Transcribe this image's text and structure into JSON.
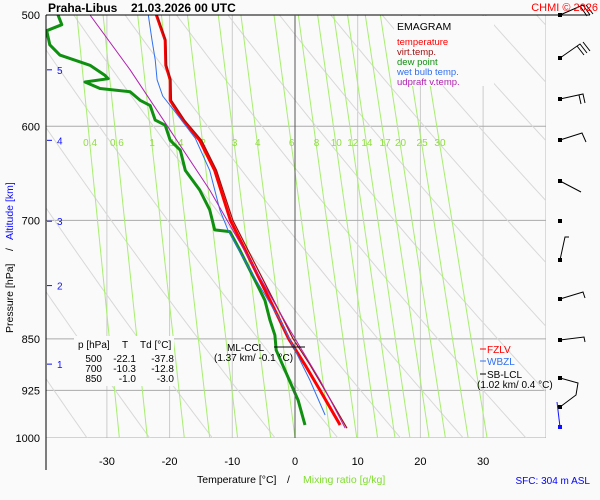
{
  "header": {
    "station": "Praha-Libus",
    "datetime": "21.03.2026 00 UTC",
    "copyright": "CHMI © 2026"
  },
  "chart_data": {
    "type": "line",
    "title": "EMAGRAM",
    "xlabel": "Temperature [°C]",
    "xlabel_sep": "/",
    "xlabel2": "Mixing ratio [g/kg]",
    "ylabel": "Pressure [hPa]",
    "ylabel_sep": "/",
    "ylabel2": "Altitude [km]",
    "xlim": [
      -38,
      42
    ],
    "ylim": [
      1000,
      500
    ],
    "x_ticks": [
      "-30",
      "-20",
      "-10",
      "0",
      "10",
      "20",
      "30"
    ],
    "y_ticks": [
      "500",
      "600",
      "700",
      "850",
      "925",
      "1000"
    ],
    "altitude_ticks": [
      {
        "km": "1",
        "p": 886
      },
      {
        "km": "2",
        "p": 779
      },
      {
        "km": "3",
        "p": 701
      },
      {
        "km": "4",
        "p": 614
      },
      {
        "km": "5",
        "p": 547
      }
    ],
    "mixing_ratio_labels": [
      "0.4",
      "0.6",
      "1",
      "1.4",
      "2",
      "3",
      "4",
      "6",
      "8",
      "10",
      "12",
      "14",
      "17",
      "20",
      "25",
      "30"
    ],
    "legend": [
      {
        "label": "temperature",
        "color": "#ff0000"
      },
      {
        "label": "virt.temp.",
        "color": "#a01010"
      },
      {
        "label": "dew point",
        "color": "#109010"
      },
      {
        "label": "wet bulb temp.",
        "color": "#3070f0"
      },
      {
        "label": "udpraft v.temp.",
        "color": "#b020b0"
      }
    ],
    "series": [
      {
        "name": "temperature",
        "color": "#ff0000",
        "p": [
          500,
          521,
          543,
          556,
          575,
          594,
          614,
          645,
          700,
          759,
          811,
          850,
          887,
          925,
          979
        ],
        "t": [
          -22.1,
          -20.7,
          -20.6,
          -19.9,
          -19.9,
          -17.9,
          -15.2,
          -12.8,
          -10.3,
          -6.4,
          -3.2,
          -1.0,
          1.6,
          4.0,
          7.2
        ]
      },
      {
        "name": "virt.temp.",
        "color": "#a01010",
        "p": [
          500,
          521,
          543,
          556,
          575,
          594,
          614,
          645,
          700,
          759,
          811,
          850,
          887,
          925,
          984
        ],
        "t": [
          -22.0,
          -20.6,
          -20.5,
          -19.8,
          -19.7,
          -17.6,
          -14.9,
          -12.5,
          -9.9,
          -5.9,
          -2.6,
          -0.3,
          2.4,
          4.8,
          8.3
        ]
      },
      {
        "name": "dew point",
        "color": "#109010",
        "p": [
          500,
          508,
          513,
          525,
          534,
          543,
          552,
          555,
          558,
          564,
          567,
          575,
          580,
          594,
          599,
          614,
          624,
          645,
          666,
          688,
          711,
          713,
          735,
          772,
          798,
          824,
          845,
          866,
          895,
          940,
          979
        ],
        "t": [
          -37.8,
          -37.2,
          -39.6,
          -39.1,
          -37.5,
          -32.7,
          -30.3,
          -29.8,
          -33.5,
          -31.1,
          -26.3,
          -24.7,
          -23.1,
          -22.3,
          -20.7,
          -19.9,
          -18.3,
          -17.5,
          -15.2,
          -13.6,
          -12.8,
          -10.4,
          -8.8,
          -6.4,
          -4.8,
          -4.0,
          -3.2,
          -3.0,
          -1.6,
          0.5,
          1.6
        ]
      },
      {
        "name": "wet bulb temp.",
        "color": "#3070f0",
        "p": [
          500,
          521,
          538,
          556,
          571,
          586,
          612,
          645,
          688,
          711,
          759,
          824,
          866,
          910,
          963
        ],
        "t": [
          -23.4,
          -22.8,
          -22.3,
          -22.0,
          -21.1,
          -19.1,
          -15.9,
          -13.6,
          -12.0,
          -10.7,
          -7.2,
          -2.4,
          0.0,
          2.4,
          4.8
        ]
      },
      {
        "name": "udpraft v.temp.",
        "color": "#b020b0",
        "p": [
          500,
          547,
          604,
          666,
          747,
          838,
          910,
          984
        ],
        "t": [
          -32.7,
          -26.3,
          -19.9,
          -13.6,
          -7.2,
          -0.8,
          4.0,
          8.0
        ]
      }
    ],
    "table": {
      "headers": [
        "p [hPa]",
        "T",
        "Td [°C]"
      ],
      "rows": [
        [
          "500",
          "-22.1",
          "-37.8"
        ],
        [
          "700",
          "-10.3",
          "-12.8"
        ],
        [
          "850",
          "-1.0",
          "-3.0"
        ]
      ]
    },
    "annotations": {
      "ml_ccl": {
        "label": "ML-CCL",
        "detail": "(1.37 km/ -0.1 °C)",
        "p": 858,
        "t": -0.1
      },
      "fzlv": {
        "label": "FZLV",
        "color": "#ff0000",
        "p": 852
      },
      "wbzl": {
        "label": "WBZL",
        "color": "#3070f0",
        "p": 868
      },
      "sb_lcl": {
        "label": "SB-LCL",
        "detail": "(1.02 km/ 0.4 °C)",
        "p": 878
      }
    },
    "surface": "SFC: 304 m ASL"
  }
}
